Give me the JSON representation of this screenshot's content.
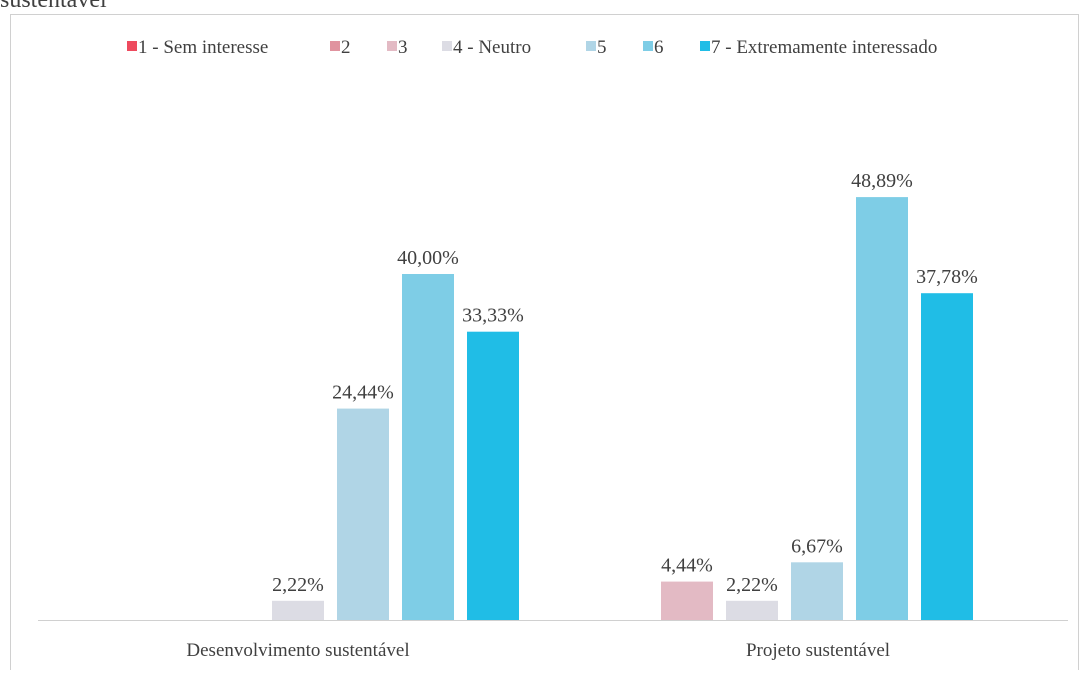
{
  "chart_data": {
    "type": "bar",
    "title": "sustentável",
    "categories": [
      "Desenvolvimento sustentável",
      "Projeto sustentável"
    ],
    "series": [
      {
        "name": "1 - Sem interesse",
        "color": "#ee4a5e",
        "values": [
          0,
          0
        ],
        "value_labels": [
          null,
          null
        ]
      },
      {
        "name": "2",
        "color": "#e0939f",
        "values": [
          0,
          0
        ],
        "value_labels": [
          null,
          null
        ]
      },
      {
        "name": "3",
        "color": "#e3bac4",
        "values": [
          0,
          4.44
        ],
        "value_labels": [
          null,
          "4,44%"
        ]
      },
      {
        "name": "4 - Neutro",
        "color": "#dcdce4",
        "values": [
          2.22,
          2.22
        ],
        "value_labels": [
          "2,22%",
          "2,22%"
        ]
      },
      {
        "name": "5",
        "color": "#b0d5e6",
        "values": [
          24.44,
          6.67
        ],
        "value_labels": [
          "24,44%",
          "6,67%"
        ]
      },
      {
        "name": "6",
        "color": "#7ecde6",
        "values": [
          40.0,
          48.89
        ],
        "value_labels": [
          "40,00%",
          "48,89%"
        ]
      },
      {
        "name": "7 - Extremamente interessado",
        "color": "#20bde6",
        "values": [
          33.33,
          37.78
        ],
        "value_labels": [
          "33,33%",
          "37,78%"
        ]
      }
    ],
    "legend": "top"
  }
}
